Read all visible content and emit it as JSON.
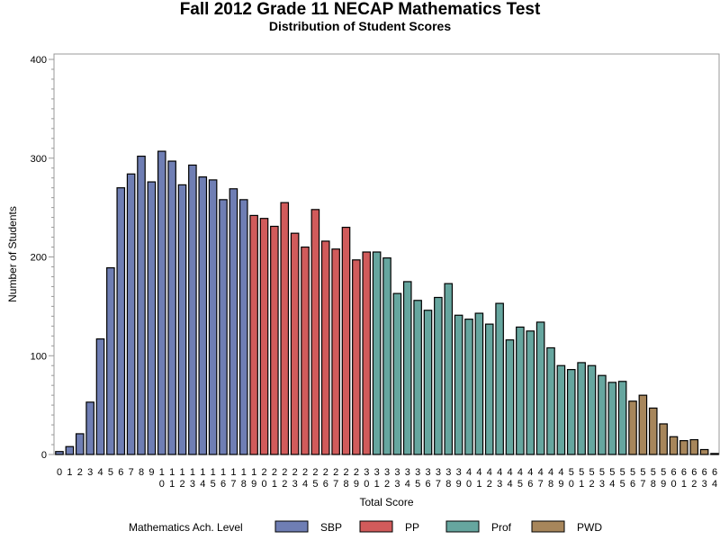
{
  "chart_data": {
    "type": "bar",
    "title": "Fall 2012 Grade 11 NECAP Mathematics Test",
    "subtitle": "Distribution of Student Scores",
    "xlabel": "Total Score",
    "ylabel": "Number of Students",
    "ylim": [
      0,
      400
    ],
    "yticks": [
      0,
      100,
      200,
      300,
      400
    ],
    "grid": false,
    "legend": {
      "title": "Mathematics Ach. Level",
      "placement": "bottom",
      "entries": [
        {
          "name": "SBP",
          "color": "#6F7EB4"
        },
        {
          "name": "PP",
          "color": "#D15B5B"
        },
        {
          "name": "Prof",
          "color": "#66A69F"
        },
        {
          "name": "PWD",
          "color": "#A7865B"
        }
      ]
    },
    "categories": [
      "0",
      "1",
      "2",
      "3",
      "4",
      "5",
      "6",
      "7",
      "8",
      "9",
      "10",
      "11",
      "12",
      "13",
      "14",
      "15",
      "16",
      "17",
      "18",
      "19",
      "20",
      "21",
      "22",
      "23",
      "24",
      "25",
      "26",
      "27",
      "28",
      "29",
      "30",
      "31",
      "32",
      "33",
      "34",
      "35",
      "36",
      "37",
      "38",
      "39",
      "40",
      "41",
      "42",
      "43",
      "44",
      "45",
      "46",
      "47",
      "48",
      "49",
      "50",
      "51",
      "52",
      "53",
      "54",
      "55",
      "56",
      "57",
      "58",
      "59",
      "60",
      "61",
      "62",
      "63",
      "64"
    ],
    "values": [
      3,
      8,
      21,
      53,
      117,
      189,
      270,
      284,
      302,
      276,
      307,
      297,
      273,
      293,
      281,
      278,
      258,
      269,
      258,
      242,
      239,
      231,
      255,
      224,
      210,
      248,
      216,
      208,
      230,
      197,
      205,
      205,
      199,
      163,
      175,
      156,
      146,
      159,
      173,
      141,
      137,
      143,
      132,
      153,
      116,
      129,
      125,
      134,
      108,
      90,
      86,
      93,
      90,
      80,
      73,
      74,
      54,
      60,
      47,
      31,
      18,
      14,
      15,
      5,
      1
    ],
    "levels": [
      "SBP",
      "SBP",
      "SBP",
      "SBP",
      "SBP",
      "SBP",
      "SBP",
      "SBP",
      "SBP",
      "SBP",
      "SBP",
      "SBP",
      "SBP",
      "SBP",
      "SBP",
      "SBP",
      "SBP",
      "SBP",
      "SBP",
      "PP",
      "PP",
      "PP",
      "PP",
      "PP",
      "PP",
      "PP",
      "PP",
      "PP",
      "PP",
      "PP",
      "PP",
      "Prof",
      "Prof",
      "Prof",
      "Prof",
      "Prof",
      "Prof",
      "Prof",
      "Prof",
      "Prof",
      "Prof",
      "Prof",
      "Prof",
      "Prof",
      "Prof",
      "Prof",
      "Prof",
      "Prof",
      "Prof",
      "Prof",
      "Prof",
      "Prof",
      "Prof",
      "Prof",
      "Prof",
      "Prof",
      "PWD",
      "PWD",
      "PWD",
      "PWD",
      "PWD",
      "PWD",
      "PWD",
      "PWD",
      "PWD"
    ]
  }
}
